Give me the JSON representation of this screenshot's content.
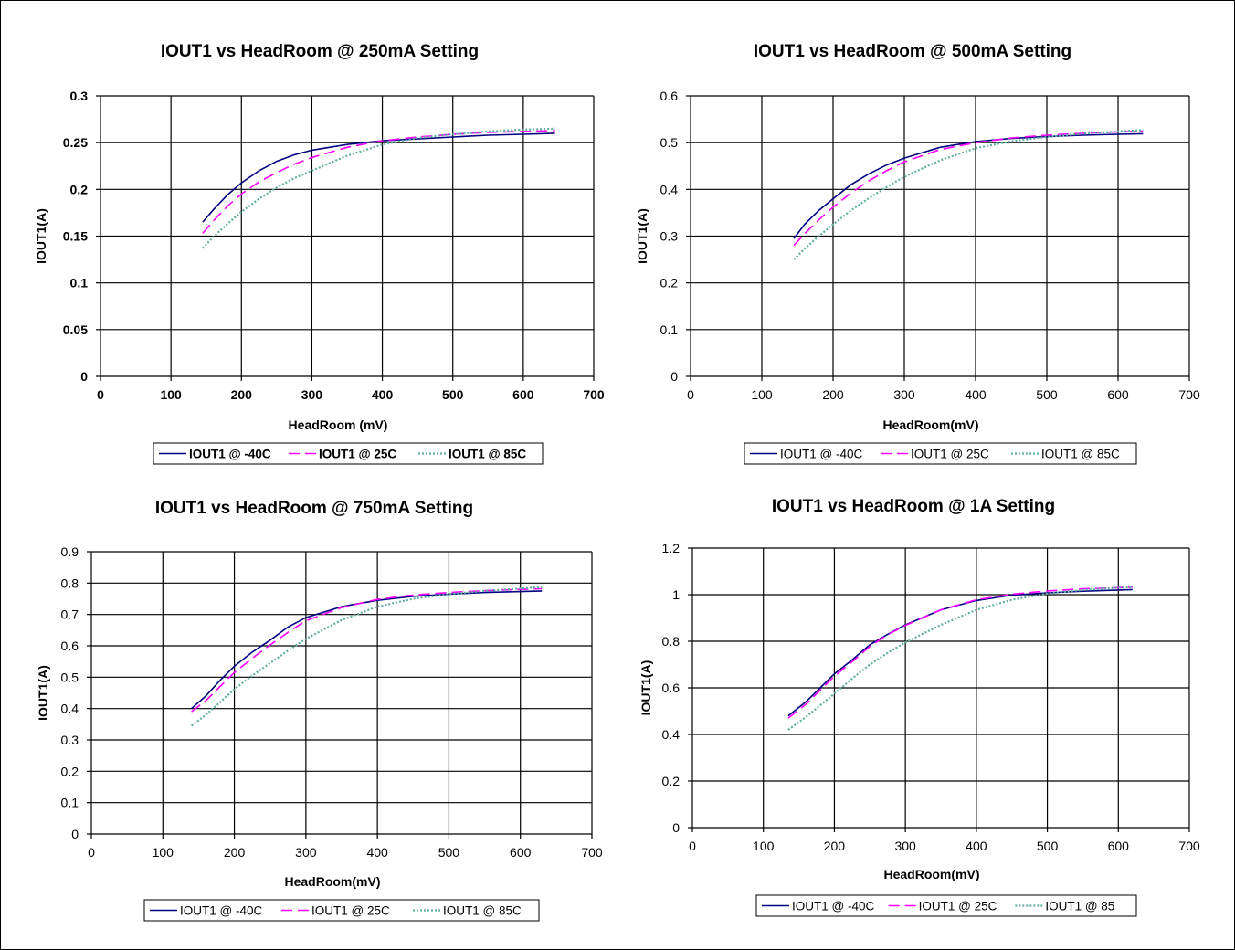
{
  "chart_data": [
    {
      "type": "line",
      "title": "IOUT1 vs HeadRoom @ 250mA Setting",
      "xlabel": "HeadRoom (mV)",
      "ylabel": "IOUT1(A)",
      "xlim": [
        0,
        700
      ],
      "ylim": [
        0,
        0.3
      ],
      "xticks": [
        "0",
        "100",
        "200",
        "300",
        "400",
        "500",
        "600",
        "700"
      ],
      "yticks": [
        "0",
        "0.05",
        "0.1",
        "0.15",
        "0.2",
        "0.25",
        "0.3"
      ],
      "bold_ticks": true,
      "grid": true,
      "legend_position": "bottom",
      "series": [
        {
          "name": "IOUT1 @ -40C",
          "color": "#000080",
          "style": "solid",
          "x": [
            145,
            160,
            180,
            200,
            225,
            250,
            275,
            300,
            350,
            400,
            450,
            500,
            550,
            600,
            645
          ],
          "y": [
            0.165,
            0.178,
            0.194,
            0.207,
            0.22,
            0.23,
            0.237,
            0.242,
            0.248,
            0.252,
            0.254,
            0.256,
            0.258,
            0.259,
            0.26
          ]
        },
        {
          "name": "IOUT1 @ 25C",
          "color": "#ff00ff",
          "style": "dashed",
          "x": [
            145,
            160,
            180,
            200,
            225,
            250,
            275,
            300,
            350,
            400,
            450,
            500,
            550,
            600,
            645
          ],
          "y": [
            0.153,
            0.166,
            0.182,
            0.195,
            0.208,
            0.218,
            0.227,
            0.234,
            0.245,
            0.252,
            0.256,
            0.259,
            0.261,
            0.262,
            0.263
          ]
        },
        {
          "name": "IOUT1 @ 85C",
          "color": "#5fb0a0",
          "style": "dotted",
          "x": [
            145,
            160,
            180,
            200,
            225,
            250,
            275,
            300,
            350,
            400,
            450,
            500,
            550,
            600,
            645
          ],
          "y": [
            0.137,
            0.149,
            0.163,
            0.176,
            0.19,
            0.202,
            0.212,
            0.22,
            0.236,
            0.248,
            0.255,
            0.259,
            0.262,
            0.264,
            0.265
          ]
        }
      ]
    },
    {
      "type": "line",
      "title": "IOUT1 vs HeadRoom @ 500mA Setting",
      "xlabel": "HeadRoom(mV)",
      "ylabel": "IOUT1(A)",
      "xlim": [
        0,
        700
      ],
      "ylim": [
        0,
        0.6
      ],
      "xticks": [
        "0",
        "100",
        "200",
        "300",
        "400",
        "500",
        "600",
        "700"
      ],
      "yticks": [
        "0",
        "0.1",
        "0.2",
        "0.3",
        "0.4",
        "0.5",
        "0.6"
      ],
      "bold_ticks": false,
      "grid": true,
      "legend_position": "bottom",
      "series": [
        {
          "name": "IOUT1 @ -40C",
          "color": "#000080",
          "style": "solid",
          "x": [
            145,
            160,
            180,
            200,
            225,
            250,
            275,
            300,
            350,
            400,
            450,
            500,
            550,
            600,
            635
          ],
          "y": [
            0.295,
            0.325,
            0.355,
            0.38,
            0.41,
            0.433,
            0.452,
            0.467,
            0.49,
            0.502,
            0.509,
            0.513,
            0.516,
            0.518,
            0.519
          ]
        },
        {
          "name": "IOUT1 @ 25C",
          "color": "#ff00ff",
          "style": "dashed",
          "x": [
            145,
            160,
            180,
            200,
            225,
            250,
            275,
            300,
            350,
            400,
            450,
            500,
            550,
            600,
            635
          ],
          "y": [
            0.28,
            0.305,
            0.335,
            0.362,
            0.392,
            0.418,
            0.44,
            0.459,
            0.485,
            0.5,
            0.51,
            0.516,
            0.52,
            0.523,
            0.525
          ]
        },
        {
          "name": "IOUT1 @ 85C",
          "color": "#5fb0a0",
          "style": "dotted",
          "x": [
            145,
            160,
            180,
            200,
            225,
            250,
            275,
            300,
            350,
            400,
            450,
            500,
            550,
            600,
            635
          ],
          "y": [
            0.25,
            0.273,
            0.3,
            0.325,
            0.355,
            0.381,
            0.405,
            0.427,
            0.462,
            0.488,
            0.503,
            0.512,
            0.519,
            0.524,
            0.527
          ]
        }
      ]
    },
    {
      "type": "line",
      "title": "IOUT1 vs HeadRoom @ 750mA Setting",
      "xlabel": "HeadRoom(mV)",
      "ylabel": "IOUT1(A)",
      "xlim": [
        0,
        700
      ],
      "ylim": [
        0,
        0.9
      ],
      "xticks": [
        "0",
        "100",
        "200",
        "300",
        "400",
        "500",
        "600",
        "700"
      ],
      "yticks": [
        "0",
        "0.1",
        "0.2",
        "0.3",
        "0.4",
        "0.5",
        "0.6",
        "0.7",
        "0.8",
        "0.9"
      ],
      "bold_ticks": false,
      "grid": true,
      "legend_position": "bottom",
      "series": [
        {
          "name": "IOUT1 @ -40C",
          "color": "#000080",
          "style": "solid",
          "x": [
            140,
            160,
            180,
            200,
            225,
            250,
            275,
            300,
            350,
            400,
            450,
            500,
            550,
            600,
            630
          ],
          "y": [
            0.4,
            0.44,
            0.49,
            0.535,
            0.58,
            0.618,
            0.66,
            0.69,
            0.725,
            0.745,
            0.758,
            0.765,
            0.77,
            0.773,
            0.775
          ]
        },
        {
          "name": "IOUT1 @ 25C",
          "color": "#ff00ff",
          "style": "dashed",
          "x": [
            140,
            160,
            180,
            200,
            225,
            250,
            275,
            300,
            350,
            400,
            450,
            500,
            550,
            600,
            630
          ],
          "y": [
            0.39,
            0.425,
            0.47,
            0.515,
            0.56,
            0.603,
            0.643,
            0.68,
            0.722,
            0.748,
            0.762,
            0.77,
            0.776,
            0.78,
            0.782
          ]
        },
        {
          "name": "IOUT1 @ 85C",
          "color": "#5fb0a0",
          "style": "dotted",
          "x": [
            140,
            160,
            180,
            200,
            225,
            250,
            275,
            300,
            350,
            400,
            450,
            500,
            550,
            600,
            630
          ],
          "y": [
            0.345,
            0.38,
            0.42,
            0.462,
            0.505,
            0.545,
            0.585,
            0.622,
            0.682,
            0.725,
            0.75,
            0.765,
            0.775,
            0.783,
            0.787
          ]
        }
      ]
    },
    {
      "type": "line",
      "title": "IOUT1 vs HeadRoom @ 1A Setting",
      "xlabel": "HeadRoom(mV)",
      "ylabel": "IOUT1(A)",
      "xlim": [
        0,
        700
      ],
      "ylim": [
        0,
        1.2
      ],
      "xticks": [
        "0",
        "100",
        "200",
        "300",
        "400",
        "500",
        "600",
        "700"
      ],
      "yticks": [
        "0",
        "0.2",
        "0.4",
        "0.6",
        "0.8",
        "1",
        "1.2"
      ],
      "bold_ticks": false,
      "grid": true,
      "legend_position": "bottom",
      "series": [
        {
          "name": "IOUT1 @ -40C",
          "color": "#000080",
          "style": "solid",
          "x": [
            135,
            160,
            180,
            200,
            225,
            250,
            275,
            300,
            350,
            400,
            450,
            500,
            550,
            600,
            620
          ],
          "y": [
            0.48,
            0.54,
            0.6,
            0.66,
            0.72,
            0.785,
            0.83,
            0.87,
            0.935,
            0.975,
            0.998,
            1.008,
            1.015,
            1.02,
            1.022
          ]
        },
        {
          "name": "IOUT1 @ 25C",
          "color": "#ff00ff",
          "style": "dashed",
          "x": [
            135,
            160,
            180,
            200,
            225,
            250,
            275,
            300,
            350,
            400,
            450,
            500,
            550,
            600,
            620
          ],
          "y": [
            0.47,
            0.53,
            0.59,
            0.65,
            0.712,
            0.778,
            0.828,
            0.868,
            0.935,
            0.978,
            1.002,
            1.016,
            1.025,
            1.03,
            1.032
          ]
        },
        {
          "name": "IOUT1 @ 85",
          "color": "#5fb0a0",
          "style": "dotted",
          "x": [
            135,
            160,
            180,
            200,
            225,
            250,
            275,
            300,
            350,
            400,
            450,
            500,
            550,
            600,
            620
          ],
          "y": [
            0.42,
            0.475,
            0.525,
            0.575,
            0.64,
            0.7,
            0.75,
            0.795,
            0.87,
            0.935,
            0.978,
            1.005,
            1.02,
            1.03,
            1.033
          ]
        }
      ]
    }
  ]
}
